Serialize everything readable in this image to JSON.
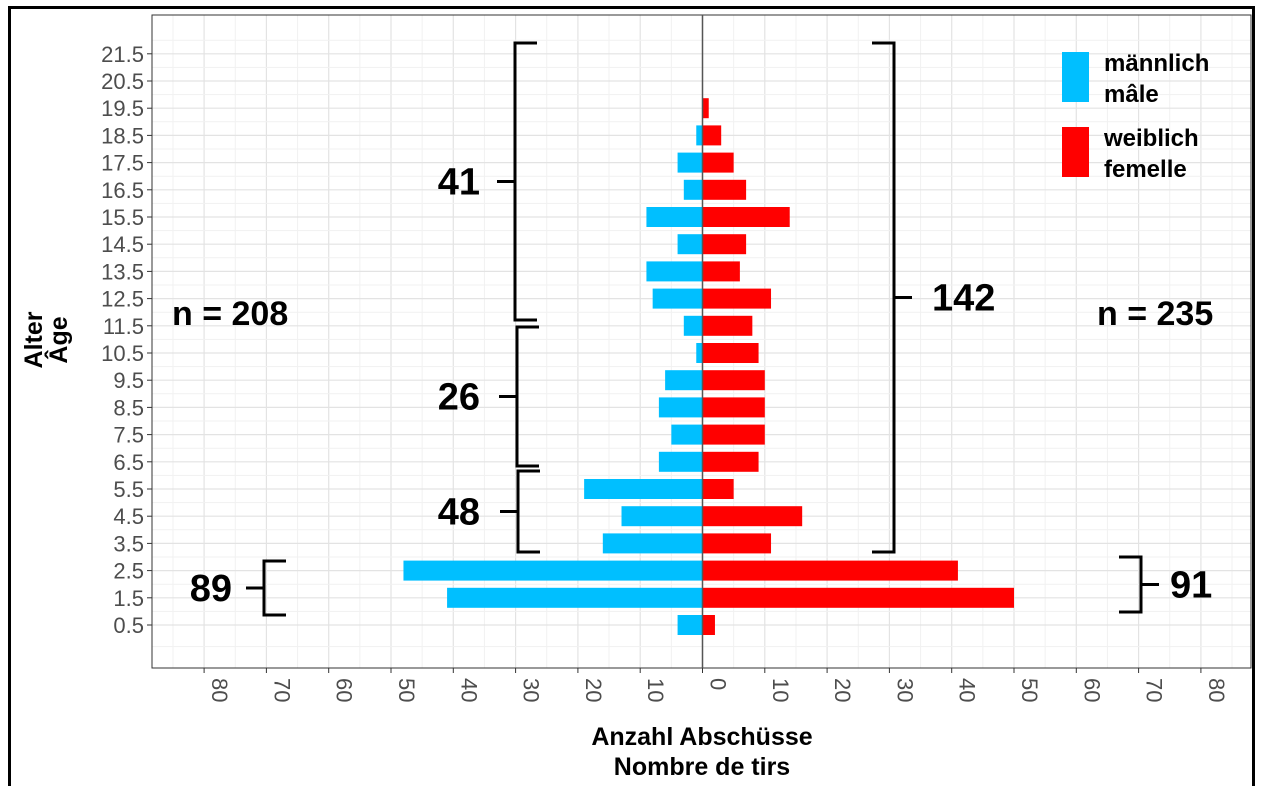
{
  "chart_data": {
    "type": "bar",
    "orientation": "horizontal-population-pyramid",
    "title": "",
    "xlabel": [
      "Anzahl Abschüsse",
      "Nombre de tirs"
    ],
    "ylabel": [
      "Alter",
      "Âge"
    ],
    "xlim": [
      -88,
      88
    ],
    "x_tick_labels": [
      "80",
      "70",
      "60",
      "50",
      "40",
      "30",
      "20",
      "10",
      "0",
      "10",
      "20",
      "30",
      "40",
      "50",
      "60",
      "70",
      "80"
    ],
    "categories": [
      "0.5",
      "1.5",
      "2.5",
      "3.5",
      "4.5",
      "5.5",
      "6.5",
      "7.5",
      "8.5",
      "9.5",
      "10.5",
      "11.5",
      "12.5",
      "13.5",
      "14.5",
      "15.5",
      "16.5",
      "17.5",
      "18.5",
      "19.5",
      "20.5",
      "21.5"
    ],
    "series": [
      {
        "name": "männlich mâle",
        "color": "#00bfff",
        "side": "left",
        "values": [
          4,
          41,
          48,
          16,
          13,
          19,
          7,
          5,
          7,
          6,
          1,
          3,
          8,
          9,
          4,
          9,
          3,
          4,
          1,
          0,
          0,
          0
        ]
      },
      {
        "name": "weiblich femelle",
        "color": "#ff0000",
        "side": "right",
        "values": [
          2,
          50,
          41,
          11,
          16,
          5,
          9,
          10,
          10,
          10,
          9,
          8,
          11,
          6,
          7,
          14,
          7,
          5,
          3,
          1,
          0,
          0
        ]
      }
    ],
    "grid": true,
    "legend": {
      "position": "top-right",
      "items": [
        {
          "line1": "männlich",
          "line2": "mâle",
          "color": "#00bfff"
        },
        {
          "line1": "weiblich",
          "line2": "femelle",
          "color": "#ff0000"
        }
      ]
    },
    "annotations": {
      "n_left": "n = 208",
      "n_right": "n = 235",
      "brackets": [
        {
          "label": "41",
          "from": "11.5",
          "to": "21.5",
          "side": "left"
        },
        {
          "label": "26",
          "from": "6.5",
          "to": "11.5",
          "side": "left"
        },
        {
          "label": "48",
          "from": "3.5",
          "to": "5.5",
          "side": "left"
        },
        {
          "label": "89",
          "from": "1.5",
          "to": "2.5",
          "side": "left"
        },
        {
          "label": "142",
          "from": "3.5",
          "to": "21.5",
          "side": "right"
        },
        {
          "label": "91",
          "from": "1.5",
          "to": "2.5",
          "side": "right"
        }
      ]
    }
  }
}
